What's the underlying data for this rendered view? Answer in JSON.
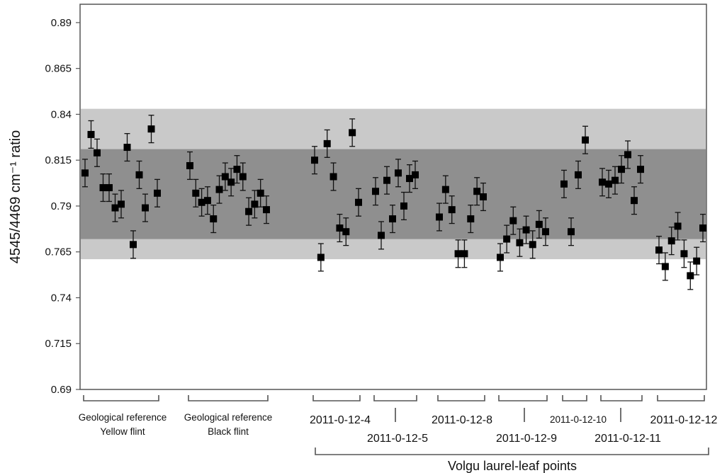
{
  "chart_data": {
    "type": "scatter",
    "title": "",
    "xlabel": "",
    "ylabel": "4545/4469 cm⁻¹ ratio",
    "ylim": [
      0.69,
      0.9
    ],
    "yticks": [
      "0.69",
      "0.715",
      "0.74",
      "0.765",
      "0.79",
      "0.815",
      "0.84",
      "0.865",
      "0.89"
    ],
    "grid": false,
    "bands": [
      {
        "name": "outer",
        "y0": 0.761,
        "y1": 0.843,
        "color": "#c9c9c9"
      },
      {
        "name": "inner",
        "y0": 0.772,
        "y1": 0.821,
        "color": "#8f8f8f"
      }
    ],
    "marker_color": "#000000",
    "groups": [
      {
        "label": "Geological reference\nYellow flint",
        "values": [
          0.808,
          0.829,
          0.819,
          0.8,
          0.8,
          0.789,
          0.791,
          0.822,
          0.769,
          0.807,
          0.789,
          0.832,
          0.797
        ]
      },
      {
        "label": "Geological reference\nBlack flint",
        "values": [
          0.812,
          0.797,
          0.792,
          0.793,
          0.783,
          0.799,
          0.806,
          0.803,
          0.81,
          0.806,
          0.787,
          0.791,
          0.797,
          0.788
        ]
      },
      {
        "label": "2011-0-12-4",
        "values": [
          0.815,
          0.762,
          0.824,
          0.806,
          0.778,
          0.776,
          0.83,
          0.792
        ]
      },
      {
        "label": "2011-0-12-5",
        "values": [
          0.798,
          0.774,
          0.804,
          0.783,
          0.808,
          0.79,
          0.805,
          0.807
        ]
      },
      {
        "label": "2011-0-12-8",
        "values": [
          0.784,
          0.799,
          0.788,
          0.764,
          0.764,
          0.783,
          0.798,
          0.795
        ]
      },
      {
        "label": "2011-0-12-9",
        "values": [
          0.762,
          0.772,
          0.782,
          0.77,
          0.777,
          0.769,
          0.78,
          0.776
        ]
      },
      {
        "label": "2011-0-12-10",
        "values": [
          0.802,
          0.776,
          0.807,
          0.826
        ]
      },
      {
        "label": "2011-0-12-11",
        "values": [
          0.803,
          0.802,
          0.804,
          0.81,
          0.818,
          0.793,
          0.81
        ]
      },
      {
        "label": "2011-0-12-12",
        "values": [
          0.766,
          0.757,
          0.771,
          0.779,
          0.764,
          0.752,
          0.76,
          0.778
        ]
      }
    ],
    "super_group": "Volgu laurel-leaf points"
  }
}
